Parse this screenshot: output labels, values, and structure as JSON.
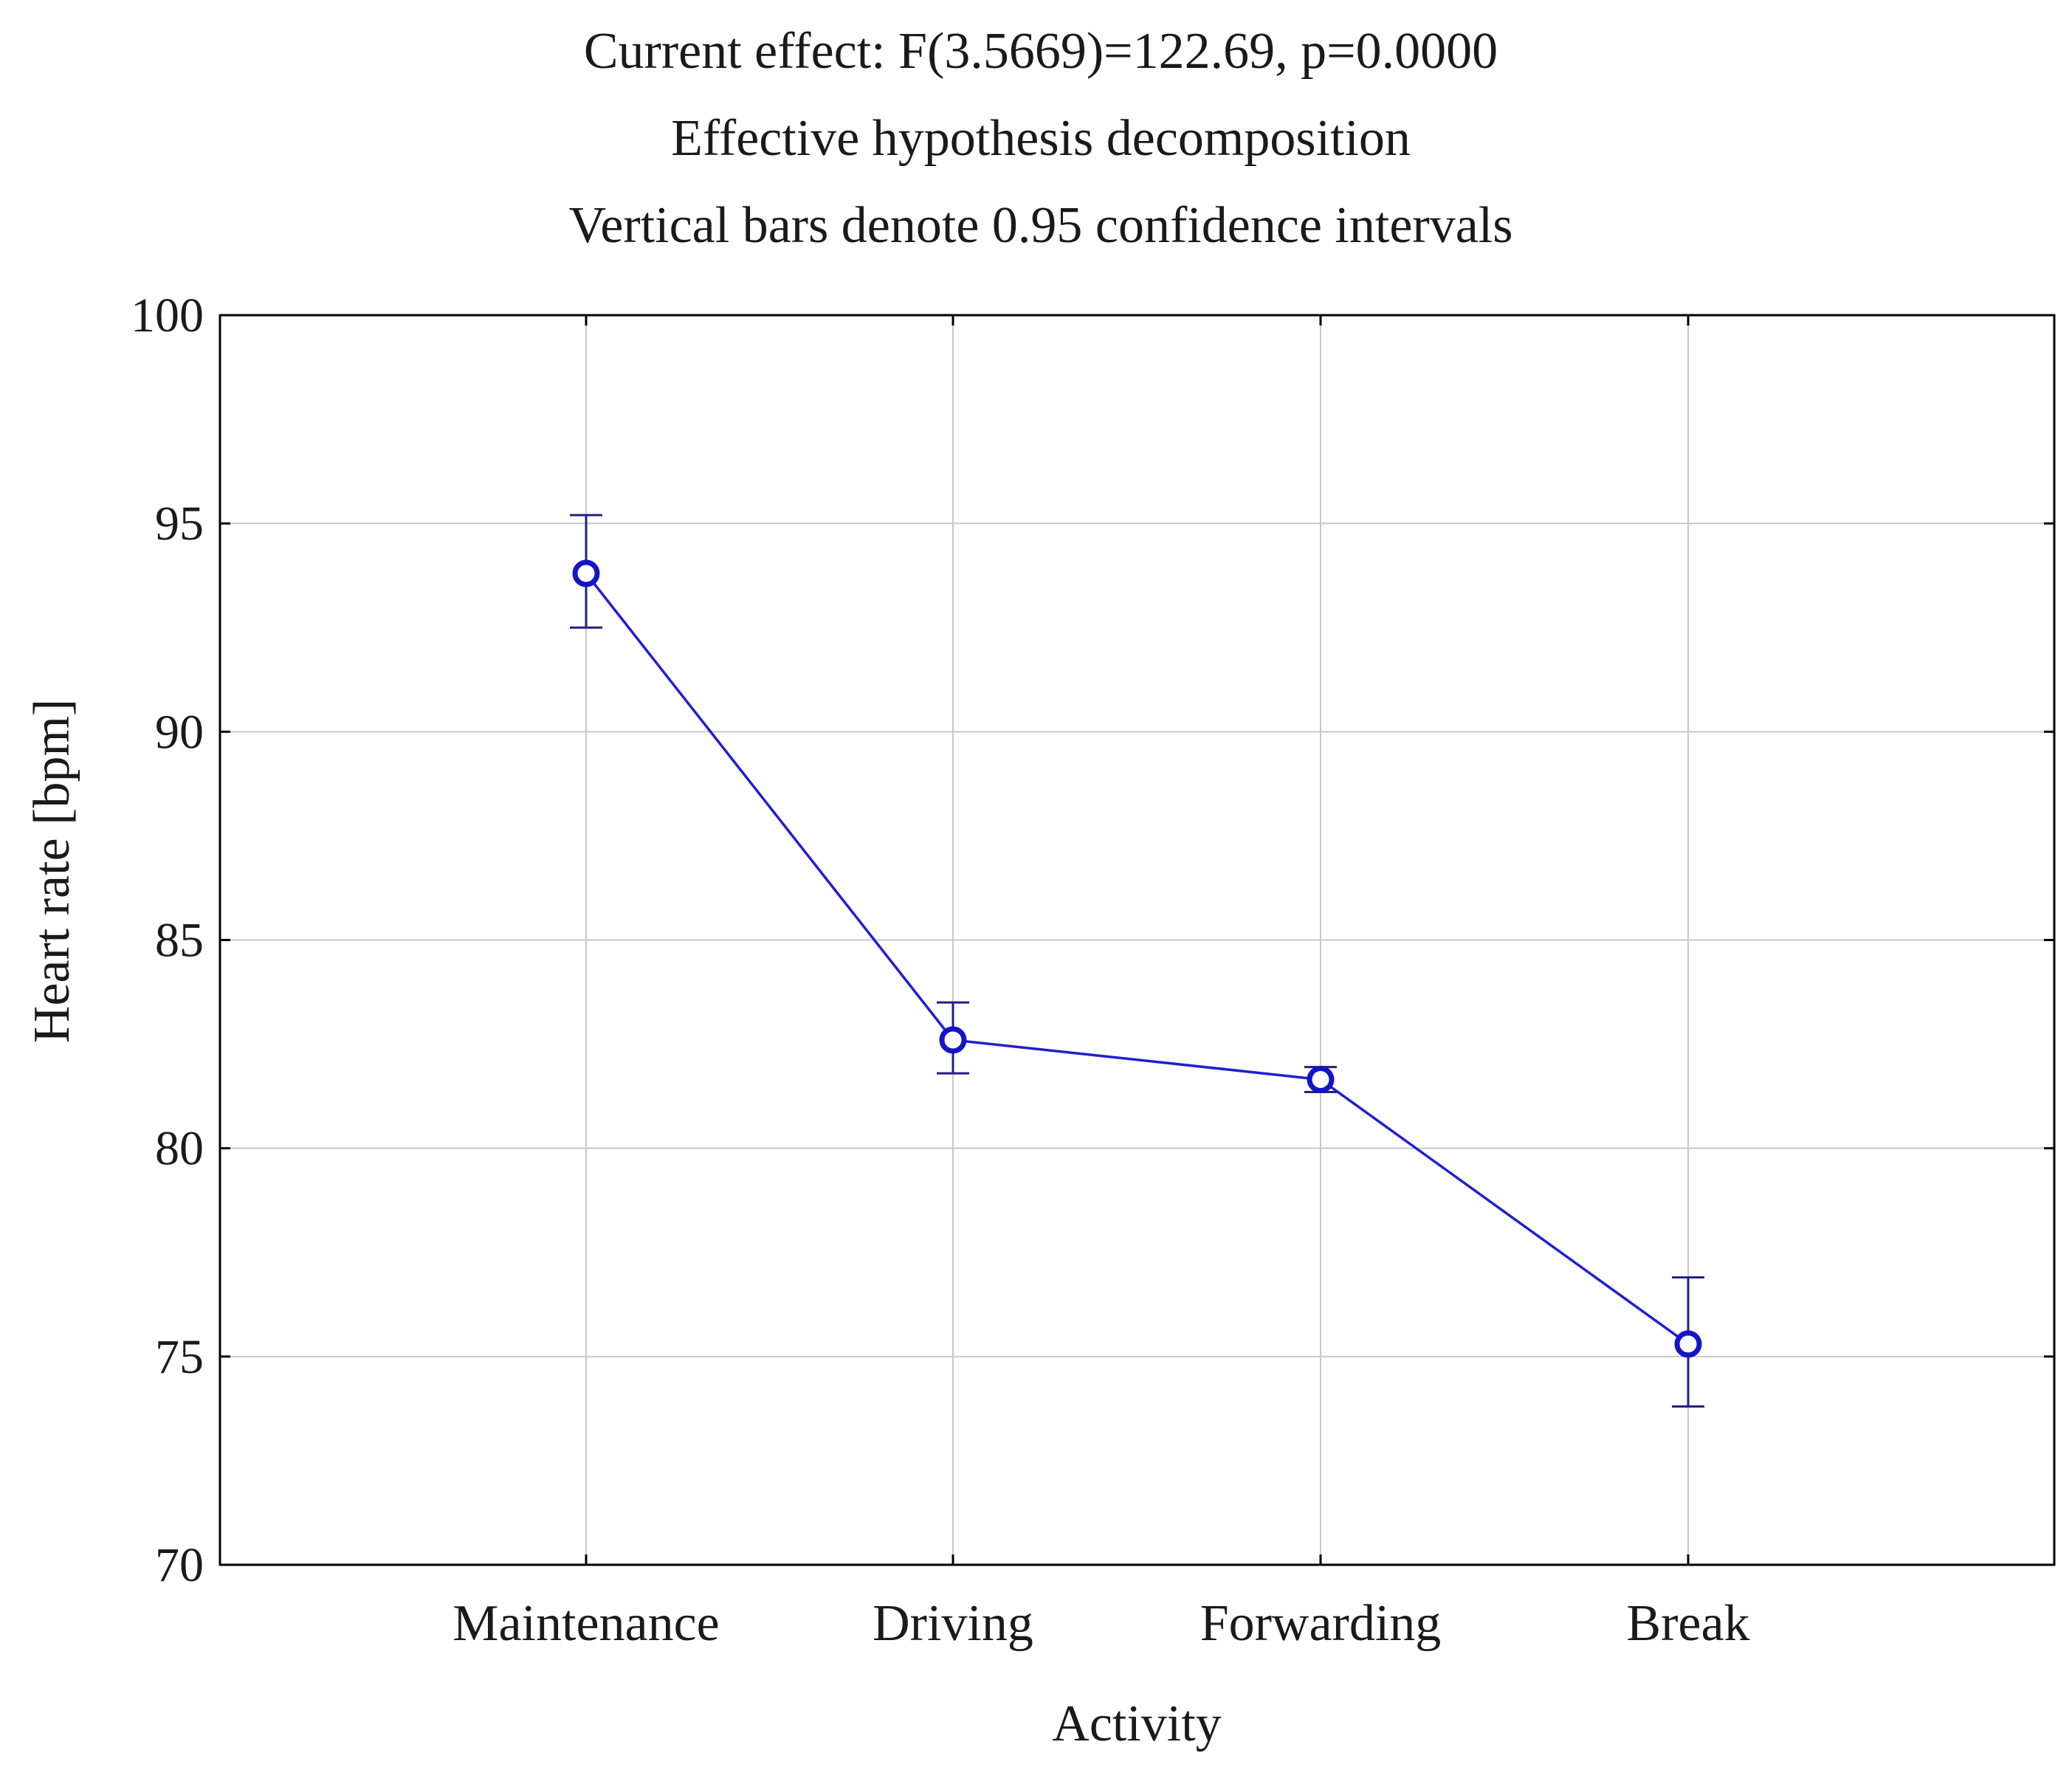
{
  "chart_data": {
    "type": "line",
    "title_lines": [
      "Current effect: F(3.5669)=122.69, p=0.0000",
      "Effective hypothesis decomposition",
      "Vertical bars denote 0.95 confidence intervals"
    ],
    "xlabel": "Activity",
    "ylabel": "Heart rate [bpm]",
    "categories": [
      "Maintenance",
      "Driving",
      "Forwarding",
      "Break"
    ],
    "series": [
      {
        "name": "Heart rate",
        "values": [
          93.8,
          82.6,
          81.65,
          75.3
        ],
        "ci_lower": [
          92.5,
          81.8,
          81.35,
          73.8
        ],
        "ci_upper": [
          95.2,
          83.5,
          81.95,
          76.9
        ]
      }
    ],
    "ylim": [
      70,
      100
    ],
    "yticks": [
      70,
      75,
      80,
      85,
      90,
      95,
      100
    ],
    "grid": true,
    "colors": {
      "series": "#1f1fd0",
      "marker": "#1414c8",
      "errorbar": "#202080",
      "grid": "#c8c8c8",
      "axis": "#000000"
    }
  }
}
